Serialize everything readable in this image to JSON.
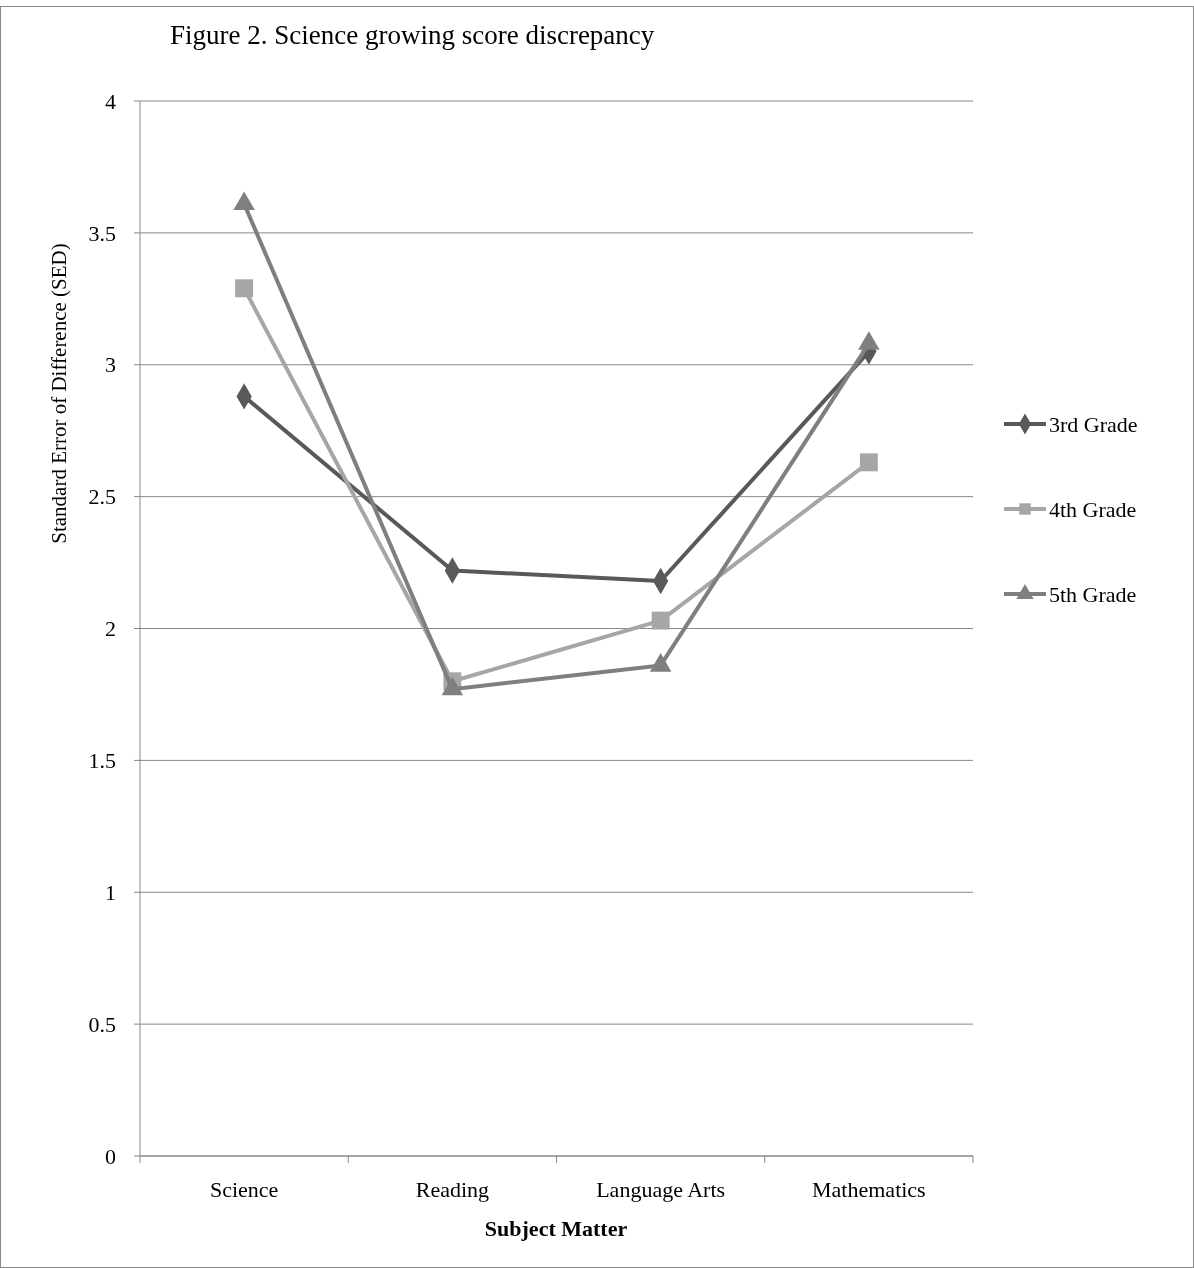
{
  "chart_data": {
    "type": "line",
    "title": "Figure 2. Science growing score discrepancy",
    "xlabel": "Subject Matter",
    "ylabel": "Standard Error of Difference  (SED)",
    "categories": [
      "Science",
      "Reading",
      "Language Arts",
      "Mathematics"
    ],
    "series": [
      {
        "name": "3rd Grade",
        "color": "#595959",
        "marker": "diamond",
        "values": [
          2.88,
          2.22,
          2.18,
          3.05
        ]
      },
      {
        "name": "4th Grade",
        "color": "#a6a6a6",
        "marker": "square",
        "values": [
          3.29,
          1.8,
          2.03,
          2.63
        ]
      },
      {
        "name": "5th Grade",
        "color": "#7f7f7f",
        "marker": "triangle",
        "values": [
          3.61,
          1.77,
          1.86,
          3.08
        ]
      }
    ],
    "ylim": [
      0,
      4
    ],
    "yticks": [
      0,
      {
        "value": 0.5,
        "label": "0.5"
      },
      1,
      {
        "value": 1.5,
        "label": "1.5"
      },
      2,
      {
        "value": 2.5,
        "label": "2.5"
      },
      3,
      {
        "value": 3.5,
        "label": "3.5"
      },
      4
    ],
    "grid": "y",
    "legend": "right",
    "line_style": "solid"
  }
}
